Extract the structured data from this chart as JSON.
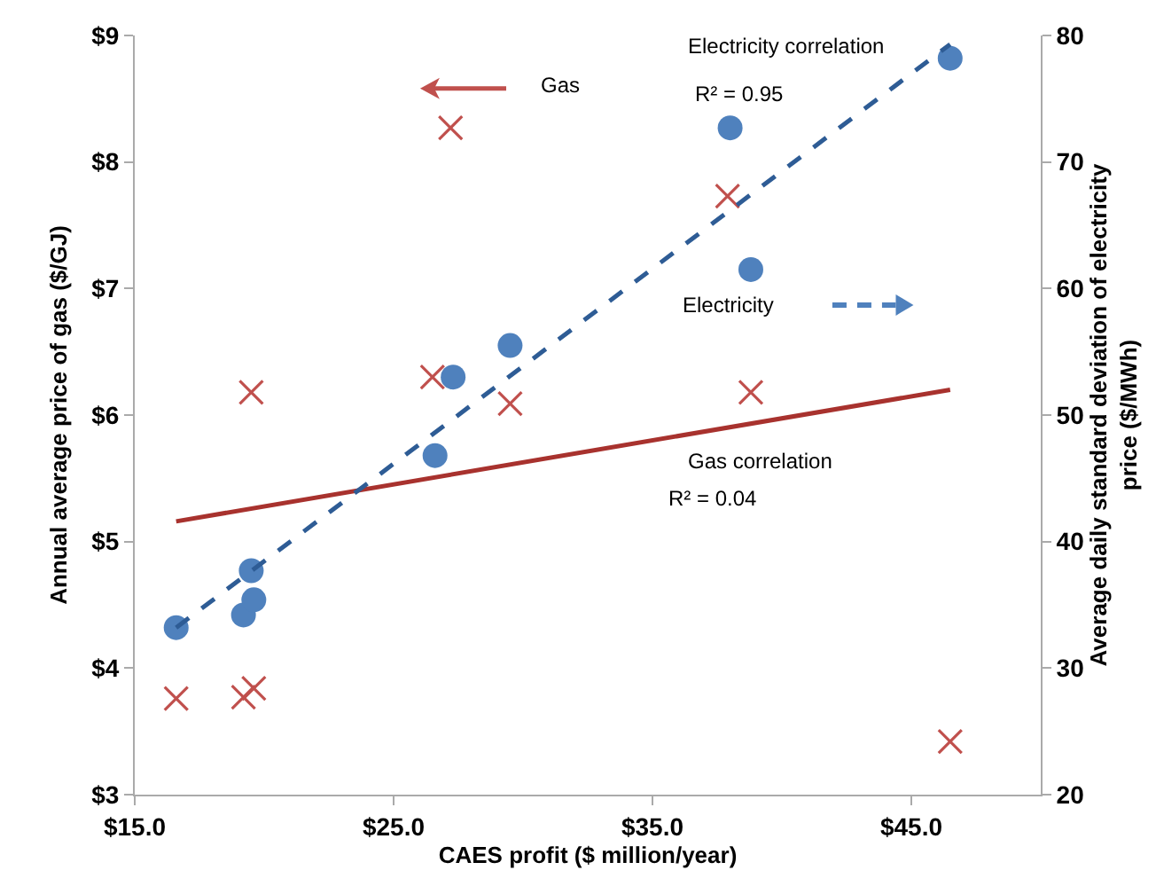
{
  "chart_data": {
    "type": "scatter",
    "xlabel": "CAES profit ($ million/year)",
    "ylabel": "Annual average price of gas ($/GJ)",
    "y2label": "Average daily standard deviation of electricity price ($/MWh)",
    "xlim": [
      15,
      50
    ],
    "xticks": [
      {
        "value": 15,
        "label": "$15.0"
      },
      {
        "value": 25,
        "label": "$25.0"
      },
      {
        "value": 35,
        "label": "$35.0"
      },
      {
        "value": 45,
        "label": "$45.0"
      }
    ],
    "ylim": [
      3,
      9
    ],
    "yticks": [
      {
        "value": 3,
        "label": "$3"
      },
      {
        "value": 4,
        "label": "$4"
      },
      {
        "value": 5,
        "label": "$5"
      },
      {
        "value": 6,
        "label": "$6"
      },
      {
        "value": 7,
        "label": "$7"
      },
      {
        "value": 8,
        "label": "$8"
      },
      {
        "value": 9,
        "label": "$9"
      }
    ],
    "y2lim": [
      20,
      80
    ],
    "y2ticks": [
      20,
      30,
      40,
      50,
      60,
      70,
      80
    ],
    "grid": false,
    "legend": "top",
    "series": [
      {
        "name": "Gas",
        "type": "scatter",
        "marker": "cross",
        "color": "#c0504d",
        "x": [
          16.6,
          19.2,
          19.6,
          19.5,
          26.5,
          27.2,
          29.5,
          37.9,
          38.8,
          46.5
        ],
        "values": [
          3.76,
          3.77,
          3.84,
          6.18,
          6.3,
          8.27,
          6.09,
          7.73,
          6.18,
          3.42
        ]
      },
      {
        "name": "Electricity",
        "type": "scatter",
        "marker": "circle",
        "axis": "y2",
        "color": "#4f81bd",
        "x": [
          16.6,
          19.2,
          19.6,
          19.5,
          26.6,
          27.3,
          29.5,
          38.0,
          38.8,
          46.5
        ],
        "values": [
          33.2,
          34.2,
          35.4,
          37.7,
          46.8,
          53.0,
          55.5,
          72.7,
          61.5,
          78.2
        ]
      },
      {
        "name": "Electricity correlation",
        "type": "line",
        "marker": "none",
        "line_style": "dashed",
        "axis": "y2",
        "color": "#2e5c95",
        "x": [
          16.6,
          46.5
        ],
        "values": [
          33.2,
          79.3
        ]
      },
      {
        "name": "Gas correlation",
        "type": "line",
        "marker": "none",
        "line_style": "solid",
        "color": "#a8322e",
        "x": [
          16.6,
          46.5
        ],
        "values": [
          5.16,
          6.2
        ]
      }
    ],
    "annotations": [
      "R² = 0.95",
      "R² = 0.04"
    ]
  }
}
